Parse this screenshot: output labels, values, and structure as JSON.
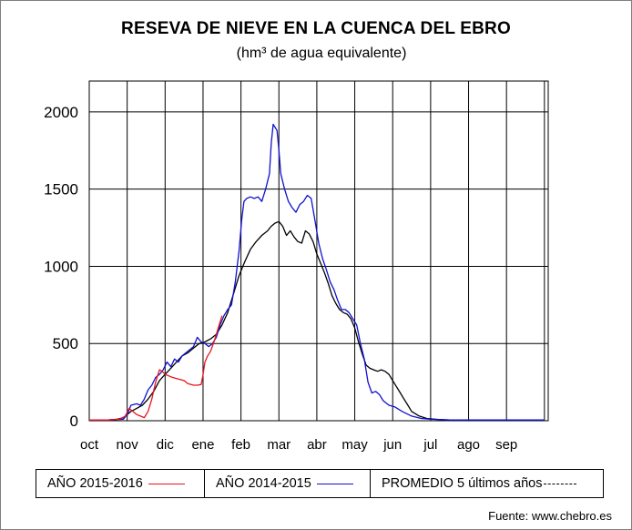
{
  "header": {
    "title": "RESEVA DE NIEVE EN LA CUENCA DEL EBRO",
    "subtitle": "(hm³ de agua equivalente)"
  },
  "legend": {
    "items": [
      {
        "label": "AÑO 2015-2016",
        "color": "#e8141c",
        "style": "solid"
      },
      {
        "label": "AÑO 2014-2015",
        "color": "#1010d0",
        "style": "solid"
      },
      {
        "label": "PROMEDIO 5 últimos años",
        "color": "#000000",
        "style": "dashed"
      }
    ]
  },
  "footer": {
    "source": "Fuente: www.chebro.es"
  },
  "chart_data": {
    "type": "line",
    "title": "RESEVA DE NIEVE EN LA CUENCA DEL EBRO",
    "subtitle": "(hm³ de agua equivalente)",
    "xlabel": "",
    "ylabel": "",
    "x_unit": "month index (0 = start of oct)",
    "xlim": [
      0,
      12.1
    ],
    "ylim": [
      0,
      2200
    ],
    "y_ticks": [
      0,
      500,
      1000,
      1500,
      2000
    ],
    "x_tick_labels": [
      "oct",
      "nov",
      "dic",
      "ene",
      "feb",
      "mar",
      "abr",
      "may",
      "jun",
      "jul",
      "ago",
      "sep"
    ],
    "grid": true,
    "legend_position": "bottom",
    "series": [
      {
        "name": "AÑO 2015-2016",
        "color": "#e8141c",
        "points": [
          [
            0.0,
            5
          ],
          [
            0.5,
            5
          ],
          [
            0.8,
            10
          ],
          [
            0.95,
            30
          ],
          [
            1.05,
            80
          ],
          [
            1.15,
            60
          ],
          [
            1.25,
            40
          ],
          [
            1.35,
            30
          ],
          [
            1.45,
            20
          ],
          [
            1.55,
            60
          ],
          [
            1.65,
            140
          ],
          [
            1.75,
            250
          ],
          [
            1.85,
            330
          ],
          [
            1.92,
            320
          ],
          [
            2.0,
            300
          ],
          [
            2.1,
            290
          ],
          [
            2.2,
            280
          ],
          [
            2.35,
            270
          ],
          [
            2.5,
            260
          ],
          [
            2.6,
            240
          ],
          [
            2.75,
            230
          ],
          [
            2.85,
            230
          ],
          [
            2.95,
            235
          ],
          [
            3.0,
            300
          ],
          [
            3.05,
            380
          ],
          [
            3.12,
            420
          ],
          [
            3.2,
            450
          ],
          [
            3.3,
            520
          ],
          [
            3.4,
            600
          ],
          [
            3.5,
            680
          ]
        ]
      },
      {
        "name": "AÑO 2014-2015",
        "color": "#1010d0",
        "points": [
          [
            0.0,
            5
          ],
          [
            0.5,
            5
          ],
          [
            0.9,
            10
          ],
          [
            1.0,
            40
          ],
          [
            1.1,
            100
          ],
          [
            1.25,
            110
          ],
          [
            1.35,
            100
          ],
          [
            1.45,
            140
          ],
          [
            1.55,
            200
          ],
          [
            1.65,
            230
          ],
          [
            1.75,
            280
          ],
          [
            1.85,
            300
          ],
          [
            1.95,
            330
          ],
          [
            2.05,
            380
          ],
          [
            2.15,
            350
          ],
          [
            2.25,
            400
          ],
          [
            2.35,
            380
          ],
          [
            2.45,
            420
          ],
          [
            2.55,
            440
          ],
          [
            2.65,
            460
          ],
          [
            2.75,
            480
          ],
          [
            2.85,
            540
          ],
          [
            2.95,
            510
          ],
          [
            3.05,
            500
          ],
          [
            3.15,
            480
          ],
          [
            3.25,
            500
          ],
          [
            3.35,
            540
          ],
          [
            3.45,
            620
          ],
          [
            3.55,
            680
          ],
          [
            3.65,
            720
          ],
          [
            3.75,
            750
          ],
          [
            3.85,
            900
          ],
          [
            3.95,
            1100
          ],
          [
            4.02,
            1300
          ],
          [
            4.08,
            1420
          ],
          [
            4.15,
            1440
          ],
          [
            4.25,
            1450
          ],
          [
            4.35,
            1440
          ],
          [
            4.45,
            1450
          ],
          [
            4.55,
            1420
          ],
          [
            4.65,
            1500
          ],
          [
            4.75,
            1600
          ],
          [
            4.8,
            1800
          ],
          [
            4.85,
            1920
          ],
          [
            4.9,
            1900
          ],
          [
            4.95,
            1880
          ],
          [
            5.0,
            1750
          ],
          [
            5.05,
            1600
          ],
          [
            5.15,
            1500
          ],
          [
            5.25,
            1420
          ],
          [
            5.35,
            1380
          ],
          [
            5.45,
            1350
          ],
          [
            5.55,
            1400
          ],
          [
            5.65,
            1420
          ],
          [
            5.75,
            1460
          ],
          [
            5.85,
            1440
          ],
          [
            5.95,
            1300
          ],
          [
            6.05,
            1150
          ],
          [
            6.15,
            1050
          ],
          [
            6.25,
            980
          ],
          [
            6.35,
            900
          ],
          [
            6.45,
            850
          ],
          [
            6.55,
            780
          ],
          [
            6.65,
            720
          ],
          [
            6.75,
            720
          ],
          [
            6.85,
            700
          ],
          [
            6.95,
            660
          ],
          [
            7.05,
            620
          ],
          [
            7.15,
            500
          ],
          [
            7.25,
            400
          ],
          [
            7.35,
            250
          ],
          [
            7.45,
            180
          ],
          [
            7.55,
            190
          ],
          [
            7.65,
            170
          ],
          [
            7.75,
            130
          ],
          [
            7.9,
            100
          ],
          [
            8.05,
            90
          ],
          [
            8.25,
            60
          ],
          [
            8.5,
            30
          ],
          [
            8.75,
            15
          ],
          [
            9.0,
            10
          ],
          [
            9.5,
            5
          ],
          [
            10.0,
            5
          ],
          [
            11.0,
            5
          ],
          [
            12.0,
            5
          ]
        ]
      },
      {
        "name": "PROMEDIO 5 últimos años",
        "color": "#000000",
        "points": [
          [
            0.0,
            5
          ],
          [
            0.5,
            5
          ],
          [
            0.75,
            10
          ],
          [
            0.9,
            20
          ],
          [
            1.0,
            40
          ],
          [
            1.1,
            60
          ],
          [
            1.25,
            80
          ],
          [
            1.4,
            100
          ],
          [
            1.55,
            140
          ],
          [
            1.7,
            190
          ],
          [
            1.85,
            260
          ],
          [
            2.0,
            300
          ],
          [
            2.15,
            340
          ],
          [
            2.3,
            380
          ],
          [
            2.45,
            420
          ],
          [
            2.6,
            440
          ],
          [
            2.75,
            470
          ],
          [
            2.9,
            500
          ],
          [
            3.05,
            510
          ],
          [
            3.2,
            530
          ],
          [
            3.35,
            560
          ],
          [
            3.5,
            620
          ],
          [
            3.65,
            700
          ],
          [
            3.8,
            820
          ],
          [
            3.95,
            940
          ],
          [
            4.1,
            1030
          ],
          [
            4.25,
            1110
          ],
          [
            4.4,
            1160
          ],
          [
            4.55,
            1200
          ],
          [
            4.7,
            1230
          ],
          [
            4.8,
            1260
          ],
          [
            4.9,
            1280
          ],
          [
            5.0,
            1290
          ],
          [
            5.1,
            1260
          ],
          [
            5.2,
            1200
          ],
          [
            5.3,
            1230
          ],
          [
            5.4,
            1190
          ],
          [
            5.5,
            1160
          ],
          [
            5.6,
            1150
          ],
          [
            5.7,
            1230
          ],
          [
            5.8,
            1210
          ],
          [
            5.9,
            1160
          ],
          [
            6.0,
            1080
          ],
          [
            6.1,
            1020
          ],
          [
            6.2,
            960
          ],
          [
            6.3,
            890
          ],
          [
            6.4,
            810
          ],
          [
            6.5,
            760
          ],
          [
            6.6,
            720
          ],
          [
            6.7,
            700
          ],
          [
            6.8,
            690
          ],
          [
            6.9,
            660
          ],
          [
            7.0,
            600
          ],
          [
            7.1,
            510
          ],
          [
            7.2,
            430
          ],
          [
            7.3,
            360
          ],
          [
            7.4,
            340
          ],
          [
            7.5,
            330
          ],
          [
            7.6,
            320
          ],
          [
            7.7,
            330
          ],
          [
            7.8,
            320
          ],
          [
            7.9,
            300
          ],
          [
            8.0,
            260
          ],
          [
            8.1,
            220
          ],
          [
            8.2,
            180
          ],
          [
            8.3,
            140
          ],
          [
            8.4,
            100
          ],
          [
            8.5,
            60
          ],
          [
            8.7,
            30
          ],
          [
            8.9,
            15
          ],
          [
            9.2,
            8
          ],
          [
            9.5,
            5
          ],
          [
            10.0,
            5
          ],
          [
            11.0,
            5
          ],
          [
            12.0,
            5
          ]
        ]
      }
    ]
  }
}
